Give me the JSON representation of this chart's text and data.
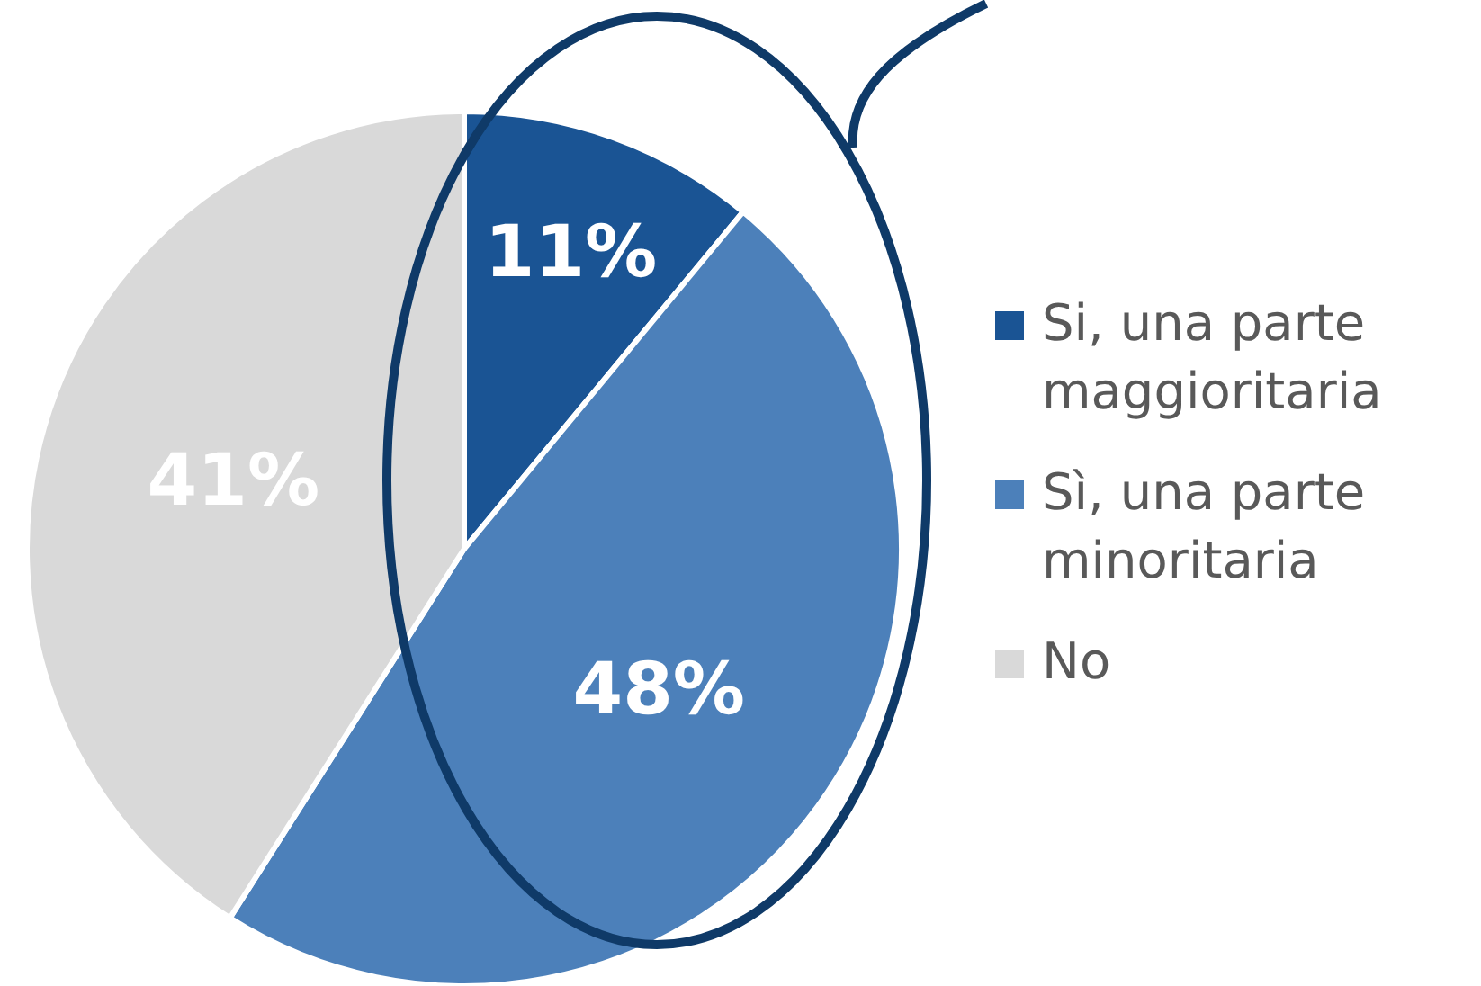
{
  "chart_data": {
    "type": "pie",
    "categories": [
      "Si, una parte maggioritaria",
      "Sì, una parte minoritaria",
      "No"
    ],
    "values": [
      11,
      48,
      41
    ],
    "colors": [
      "#1a5494",
      "#4c80ba",
      "#d9d9d9"
    ],
    "value_labels": [
      "11%",
      "48%",
      "41%"
    ],
    "legend": "right"
  }
}
